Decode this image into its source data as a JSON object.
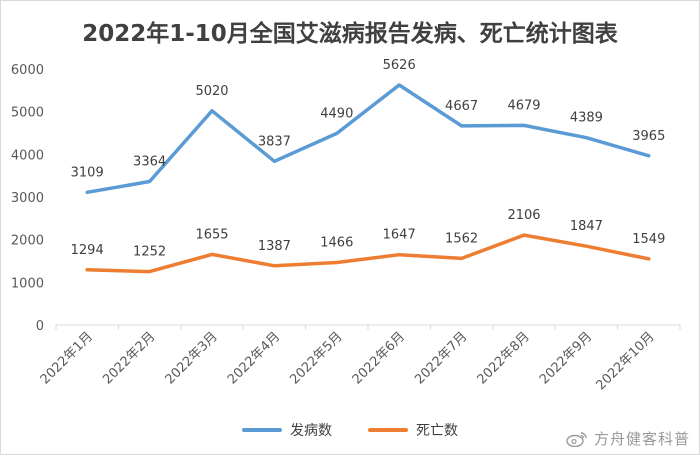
{
  "chart_data": {
    "type": "line",
    "title": "2022年1-10月全国艾滋病报告发病、死亡统计图表",
    "categories": [
      "2022年1月",
      "2022年2月",
      "2022年3月",
      "2022年4月",
      "2022年5月",
      "2022年6月",
      "2022年7月",
      "2022年8月",
      "2022年9月",
      "2022年10月"
    ],
    "series": [
      {
        "name": "发病数",
        "color": "#5b9bd5",
        "values": [
          3109,
          3364,
          5020,
          3837,
          4490,
          5626,
          4667,
          4679,
          4389,
          3965
        ]
      },
      {
        "name": "死亡数",
        "color": "#ed7d31",
        "values": [
          1294,
          1252,
          1655,
          1387,
          1466,
          1647,
          1562,
          2106,
          1847,
          1549
        ]
      }
    ],
    "ylim": [
      0,
      6000
    ],
    "yticks": [
      0,
      1000,
      2000,
      3000,
      4000,
      5000,
      6000
    ],
    "grid": false,
    "legend_position": "bottom"
  },
  "watermark": {
    "text": "方舟健客科普",
    "icon": "weibo-icon"
  }
}
